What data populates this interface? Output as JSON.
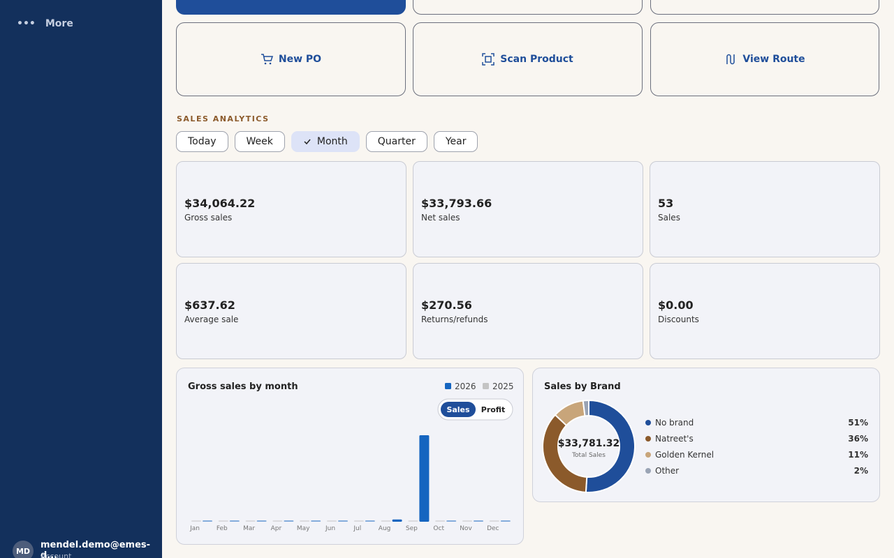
{
  "sidebar": {
    "more": "More",
    "account": {
      "initials": "MD",
      "email": "mendel.demo@emes-d...",
      "role": "Account"
    }
  },
  "quick_actions": [
    "New PO",
    "Scan Product",
    "View Route"
  ],
  "analytics": {
    "heading": "SALES ANALYTICS",
    "periods": [
      "Today",
      "Week",
      "Month",
      "Quarter",
      "Year"
    ],
    "selected_period": 2,
    "metrics": [
      {
        "value": "$34,064.22",
        "label": "Gross sales"
      },
      {
        "value": "$33,793.66",
        "label": "Net sales"
      },
      {
        "value": "53",
        "label": "Sales"
      },
      {
        "value": "$637.62",
        "label": "Average sale"
      },
      {
        "value": "$270.56",
        "label": "Returns/refunds"
      },
      {
        "value": "$0.00",
        "label": "Discounts"
      }
    ]
  },
  "chart_data": [
    {
      "type": "bar",
      "title": "Gross sales by month",
      "legend": "top-right",
      "toggle": [
        "Sales",
        "Profit"
      ],
      "toggle_selected": 0,
      "categories": [
        "Jan",
        "Feb",
        "Mar",
        "Apr",
        "May",
        "Jun",
        "Jul",
        "Aug",
        "Sep",
        "Oct",
        "Nov",
        "Dec"
      ],
      "series": [
        {
          "name": "2026",
          "color": "#1565c0",
          "values": [
            0,
            0,
            0,
            0,
            0,
            0,
            0,
            900,
            34064,
            0,
            0,
            0
          ]
        },
        {
          "name": "2025",
          "color": "#c4c4c4",
          "values": [
            0,
            0,
            0,
            0,
            0,
            0,
            0,
            0,
            0,
            0,
            0,
            0
          ]
        }
      ]
    },
    {
      "type": "pie",
      "title": "Sales by Brand",
      "legend": "right",
      "center_value": "$33,781.32",
      "center_label": "Total Sales",
      "categories": [
        "No brand",
        "Natreet's",
        "Golden Kernel",
        "Other"
      ],
      "values": [
        51,
        36,
        11,
        2
      ],
      "value_labels": [
        "51%",
        "36%",
        "11%",
        "2%"
      ],
      "colors": [
        "#1f4e9a",
        "#8b5a2b",
        "#c8a57a",
        "#9aa4b5"
      ]
    }
  ]
}
